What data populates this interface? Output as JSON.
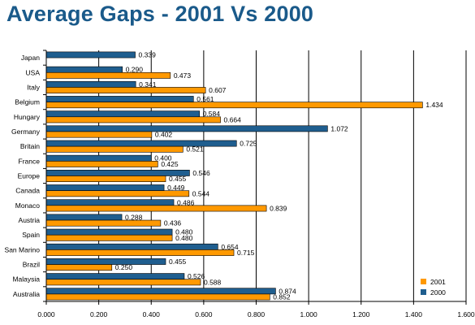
{
  "chart_data": {
    "type": "bar",
    "orientation": "horizontal",
    "title": "Average Gaps - 2001 Vs 2000",
    "categories": [
      "Japan",
      "USA",
      "Italy",
      "Belgium",
      "Hungary",
      "Germany",
      "Britain",
      "France",
      "Europe",
      "Canada",
      "Monaco",
      "Austria",
      "Spain",
      "San Marino",
      "Brazil",
      "Malaysia",
      "Australia"
    ],
    "series": [
      {
        "name": "2000",
        "color": "#1f5e8f",
        "values": [
          0.339,
          0.29,
          0.341,
          0.561,
          0.584,
          1.072,
          0.725,
          0.4,
          0.546,
          0.449,
          0.486,
          0.288,
          0.48,
          0.654,
          0.455,
          0.526,
          0.874
        ],
        "labels": [
          "0.339",
          "0.290",
          "0.341",
          "0.561",
          "0.584",
          "1.072",
          "0.725",
          "0.400",
          "0.546",
          "0.449",
          "0.486",
          "0.288",
          "0.480",
          "0.654",
          "0.455",
          "0.526",
          "0.874"
        ]
      },
      {
        "name": "2001",
        "color": "#ff9900",
        "values": [
          null,
          0.473,
          0.607,
          1.434,
          0.664,
          0.402,
          0.521,
          0.425,
          0.455,
          0.544,
          0.839,
          0.436,
          0.48,
          0.715,
          0.25,
          0.588,
          0.852
        ],
        "labels": [
          "",
          "0.473",
          "0.607",
          "1.434",
          "0.664",
          "0.402",
          "0.521",
          "0.425",
          "0.455",
          "0.544",
          "0.839",
          "0.436",
          "0.480",
          "0.715",
          "0.250",
          "0.588",
          "0.852"
        ]
      }
    ],
    "xlim": [
      0,
      1.6
    ],
    "xticks": [
      "0.000",
      "0.200",
      "0.400",
      "0.600",
      "0.800",
      "1.000",
      "1.200",
      "1.400",
      "1.600"
    ],
    "grid": "vertical",
    "legend": {
      "placement": "bottom-right",
      "entries": [
        "2001",
        "2000"
      ]
    },
    "xlabel": "",
    "ylabel": ""
  }
}
